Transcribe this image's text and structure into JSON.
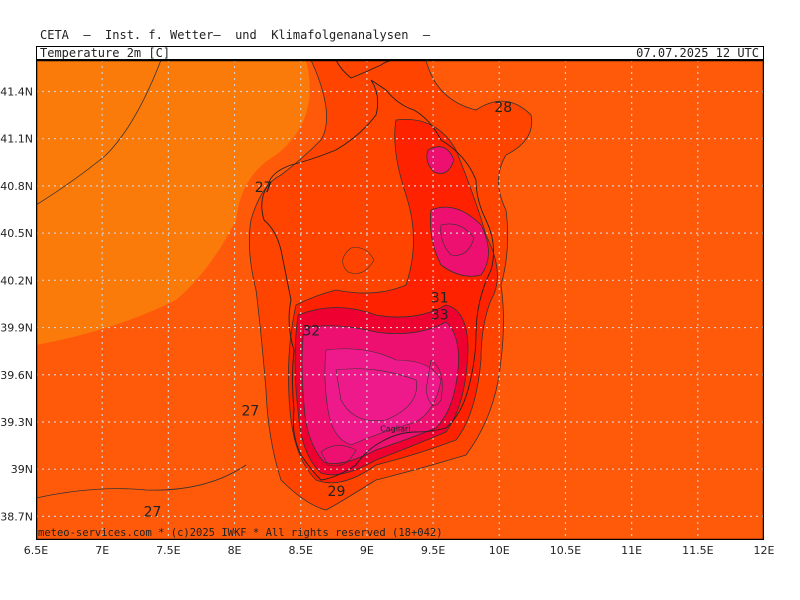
{
  "header": {
    "org_line": "CETA  —  Inst. f. Wetter—  und  Klimafolgenanalysen  —",
    "parameter": "Temperature_2m_[C]",
    "valid_time": "07.07.2025  12  UTC"
  },
  "footer": {
    "credit": "meteo-services.com * (c)2025 IWKF * All rights reserved (18+042)"
  },
  "map": {
    "lon_ticks": [
      "6.5E",
      "7E",
      "7.5E",
      "8E",
      "8.5E",
      "9E",
      "9.5E",
      "10E",
      "10.5E",
      "11E",
      "11.5E",
      "12E"
    ],
    "lat_ticks": [
      "41.4N",
      "41.1N",
      "40.8N",
      "40.5N",
      "40.2N",
      "39.9N",
      "39.6N",
      "39.3N",
      "39N",
      "38.7N"
    ],
    "lon_range": [
      6.5,
      12.0
    ],
    "lat_range": [
      38.55,
      41.6
    ],
    "contour_labels": [
      {
        "text": "28",
        "lon": 10.03,
        "lat": 41.27
      },
      {
        "text": "27",
        "lon": 8.22,
        "lat": 40.76
      },
      {
        "text": "27",
        "lon": 8.12,
        "lat": 39.34
      },
      {
        "text": "27",
        "lon": 7.38,
        "lat": 38.7
      },
      {
        "text": "31",
        "lon": 9.55,
        "lat": 40.06
      },
      {
        "text": "33",
        "lon": 9.55,
        "lat": 39.95
      },
      {
        "text": "32",
        "lon": 8.58,
        "lat": 39.85
      },
      {
        "text": "29",
        "lon": 8.77,
        "lat": 38.83
      }
    ],
    "city_label": {
      "text": "Cagliari",
      "lon": 9.1,
      "lat": 39.24
    },
    "colors": {
      "sea_west": "#fa7a0a",
      "sea_east": "#ff5a0a",
      "band_29": "#ff4400",
      "band_31": "#ff2200",
      "band_32": "#ee0030",
      "band_33": "#ee1070",
      "band_34": "#ee1a8c",
      "grid": "#cfcfcf"
    }
  }
}
